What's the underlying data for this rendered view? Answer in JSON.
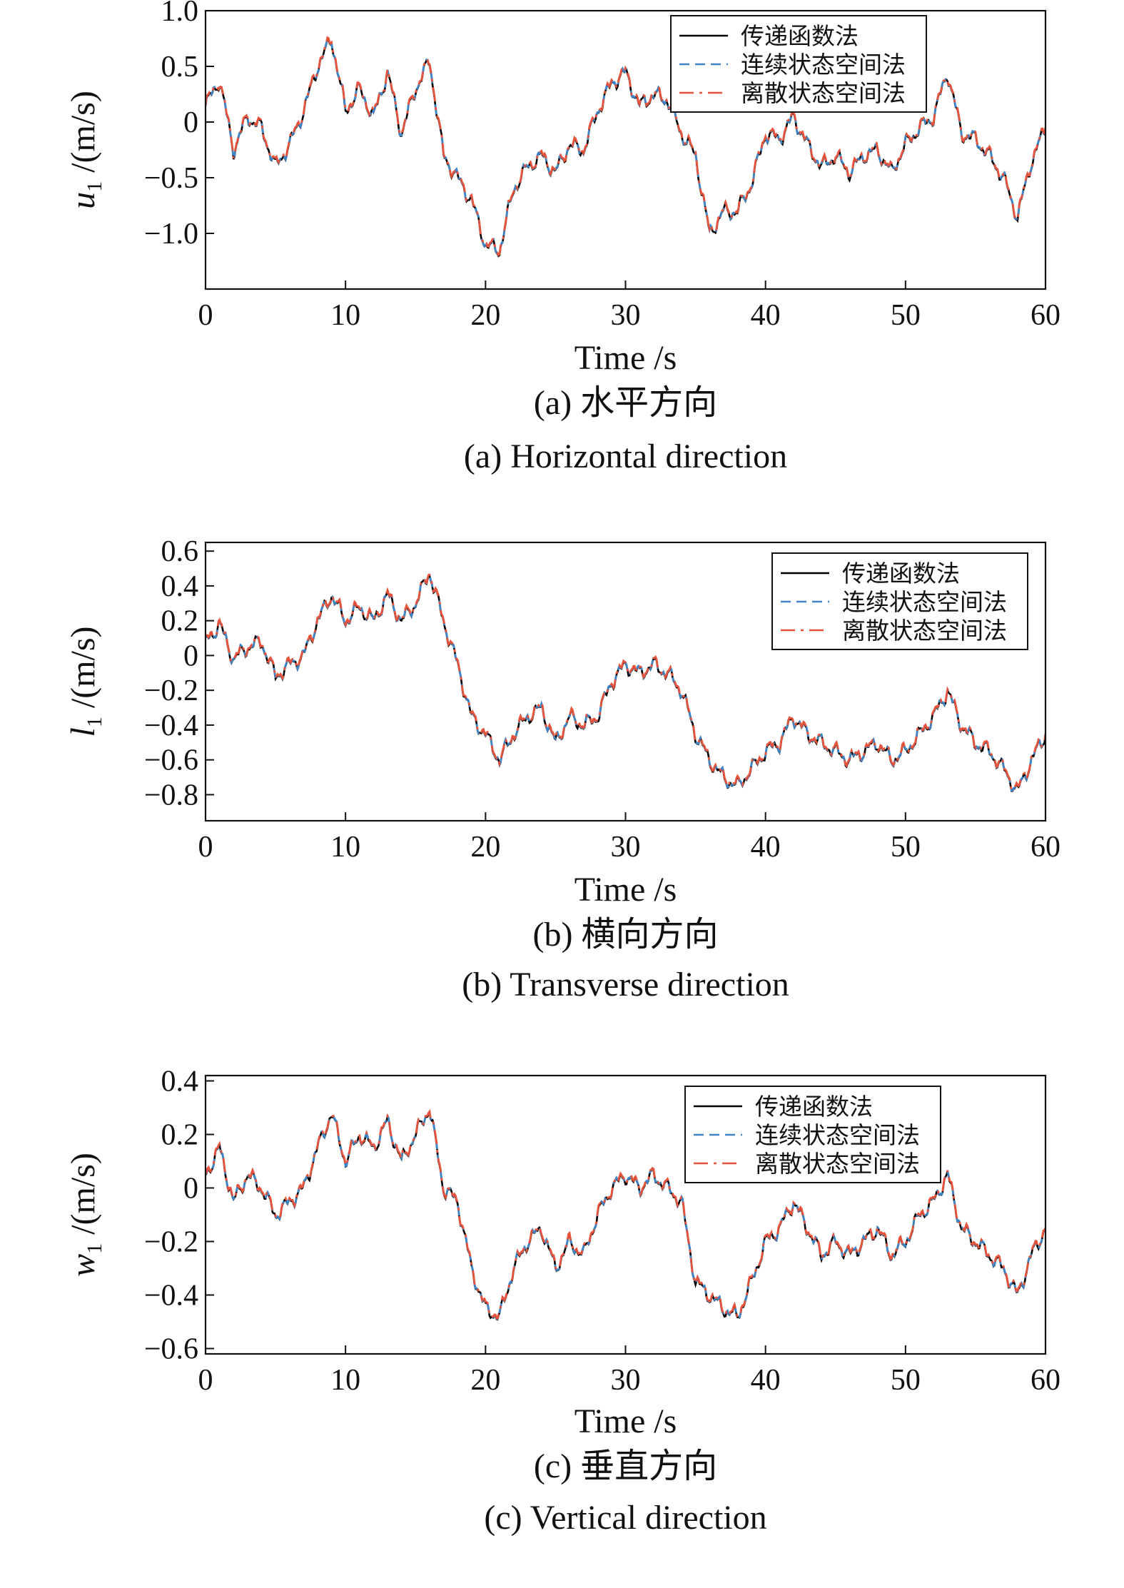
{
  "legend": {
    "entries": [
      "传递函数法",
      "连续状态空间法",
      "离散状态空间法"
    ],
    "colors": [
      "#000000",
      "#3d85c6",
      "#e8513a"
    ],
    "dashes": [
      "",
      "14,8",
      "20,8,4,8"
    ]
  },
  "panels": [
    {
      "ylabel_main": "u",
      "ylabel_sub": "1",
      "ylabel_unit": "/(m/s)",
      "xlabel": "Time /s",
      "caption_cn": "(a) 水平方向",
      "caption_en": "(a) Horizontal direction",
      "ytick_labels": [
        "1.0",
        "0.5",
        "0",
        "−0.5",
        "−1.0"
      ],
      "xtick_labels": [
        "0",
        "10",
        "20",
        "30",
        "40",
        "50",
        "60"
      ]
    },
    {
      "ylabel_main": "l",
      "ylabel_sub": "1",
      "ylabel_unit": "/(m/s)",
      "xlabel": "Time /s",
      "caption_cn": "(b) 横向方向",
      "caption_en": "(b) Transverse direction",
      "ytick_labels": [
        "0.6",
        "0.4",
        "0.2",
        "0",
        "−0.2",
        "−0.4",
        "−0.6",
        "−0.8"
      ],
      "xtick_labels": [
        "0",
        "10",
        "20",
        "30",
        "40",
        "50",
        "60"
      ]
    },
    {
      "ylabel_main": "w",
      "ylabel_sub": "1",
      "ylabel_unit": "/(m/s)",
      "xlabel": "Time /s",
      "caption_cn": "(c) 垂直方向",
      "caption_en": "(c) Vertical direction",
      "ytick_labels": [
        "0.4",
        "0.2",
        "0",
        "−0.2",
        "−0.4",
        "−0.6"
      ],
      "xtick_labels": [
        "0",
        "10",
        "20",
        "30",
        "40",
        "50",
        "60"
      ]
    }
  ],
  "chart_data": [
    {
      "type": "line",
      "xlabel": "Time /s",
      "ylabel": "u1 /(m/s)",
      "xlim": [
        0,
        60
      ],
      "ylim": [
        -1.5,
        1.0
      ],
      "yticks": [
        1.0,
        0.5,
        0,
        -0.5,
        -1.0
      ],
      "xticks": [
        0,
        10,
        20,
        30,
        40,
        50,
        60
      ],
      "legend_position": "top-right",
      "x": [
        0,
        1,
        2,
        3,
        4,
        5,
        6,
        7,
        8,
        9,
        10,
        11,
        12,
        13,
        14,
        15,
        16,
        17,
        18,
        19,
        20,
        21,
        22,
        23,
        24,
        25,
        26,
        27,
        28,
        29,
        30,
        31,
        32,
        33,
        34,
        35,
        36,
        37,
        38,
        39,
        40,
        41,
        42,
        43,
        44,
        45,
        46,
        47,
        48,
        49,
        50,
        51,
        52,
        53,
        54,
        55,
        56,
        57,
        58,
        59,
        60
      ],
      "series": [
        {
          "name": "传递函数法",
          "values": [
            0.15,
            0.38,
            -0.25,
            0.05,
            -0.05,
            -0.4,
            -0.2,
            0.1,
            0.5,
            0.75,
            0.1,
            0.3,
            0.05,
            0.45,
            -0.1,
            0.3,
            0.55,
            -0.3,
            -0.5,
            -0.7,
            -1.1,
            -1.15,
            -0.6,
            -0.4,
            -0.3,
            -0.45,
            -0.2,
            -0.25,
            0.1,
            0.35,
            0.45,
            0.15,
            0.25,
            0.2,
            -0.1,
            -0.3,
            -1.0,
            -0.8,
            -0.8,
            -0.55,
            -0.1,
            -0.15,
            0.05,
            -0.2,
            -0.4,
            -0.3,
            -0.45,
            -0.3,
            -0.25,
            -0.45,
            -0.2,
            -0.05,
            0.05,
            0.45,
            -0.1,
            -0.15,
            -0.3,
            -0.5,
            -0.85,
            -0.35,
            -0.05
          ]
        },
        {
          "name": "连续状态空间法",
          "values": [
            0.15,
            0.38,
            -0.25,
            0.05,
            -0.05,
            -0.4,
            -0.2,
            0.1,
            0.5,
            0.75,
            0.1,
            0.3,
            0.05,
            0.45,
            -0.1,
            0.3,
            0.55,
            -0.3,
            -0.5,
            -0.7,
            -1.1,
            -1.15,
            -0.6,
            -0.4,
            -0.3,
            -0.45,
            -0.2,
            -0.25,
            0.1,
            0.35,
            0.45,
            0.15,
            0.25,
            0.2,
            -0.1,
            -0.3,
            -1.0,
            -0.8,
            -0.8,
            -0.55,
            -0.1,
            -0.15,
            0.05,
            -0.2,
            -0.4,
            -0.3,
            -0.45,
            -0.3,
            -0.25,
            -0.45,
            -0.2,
            -0.05,
            0.05,
            0.45,
            -0.1,
            -0.15,
            -0.3,
            -0.5,
            -0.85,
            -0.35,
            -0.05
          ]
        },
        {
          "name": "离散状态空间法",
          "values": [
            0.15,
            0.38,
            -0.25,
            0.05,
            -0.05,
            -0.4,
            -0.2,
            0.1,
            0.5,
            0.75,
            0.1,
            0.3,
            0.05,
            0.45,
            -0.1,
            0.3,
            0.55,
            -0.3,
            -0.5,
            -0.7,
            -1.1,
            -1.15,
            -0.6,
            -0.4,
            -0.3,
            -0.45,
            -0.2,
            -0.25,
            0.1,
            0.35,
            0.45,
            0.15,
            0.25,
            0.2,
            -0.1,
            -0.3,
            -1.0,
            -0.8,
            -0.8,
            -0.55,
            -0.1,
            -0.15,
            0.05,
            -0.2,
            -0.4,
            -0.3,
            -0.45,
            -0.3,
            -0.25,
            -0.45,
            -0.2,
            -0.05,
            0.05,
            0.45,
            -0.1,
            -0.15,
            -0.3,
            -0.5,
            -0.85,
            -0.35,
            -0.05
          ]
        }
      ]
    },
    {
      "type": "line",
      "xlabel": "Time /s",
      "ylabel": "l1 /(m/s)",
      "xlim": [
        0,
        60
      ],
      "ylim": [
        -0.95,
        0.65
      ],
      "yticks": [
        0.6,
        0.4,
        0.2,
        0,
        -0.2,
        -0.4,
        -0.6,
        -0.8
      ],
      "xticks": [
        0,
        10,
        20,
        30,
        40,
        50,
        60
      ],
      "legend_position": "top-right",
      "x": [
        0,
        1,
        2,
        3,
        4,
        5,
        6,
        7,
        8,
        9,
        10,
        11,
        12,
        13,
        14,
        15,
        16,
        17,
        18,
        19,
        20,
        21,
        22,
        23,
        24,
        25,
        26,
        27,
        28,
        29,
        30,
        31,
        32,
        33,
        34,
        35,
        36,
        37,
        38,
        39,
        40,
        41,
        42,
        43,
        44,
        45,
        46,
        47,
        48,
        49,
        50,
        51,
        52,
        53,
        54,
        55,
        56,
        57,
        58,
        59,
        60
      ],
      "series": [
        {
          "name": "传递函数法",
          "values": [
            0.08,
            0.18,
            -0.02,
            0.05,
            0.08,
            -0.12,
            -0.05,
            0.0,
            0.2,
            0.35,
            0.2,
            0.28,
            0.2,
            0.35,
            0.2,
            0.3,
            0.48,
            0.2,
            -0.05,
            -0.35,
            -0.45,
            -0.6,
            -0.45,
            -0.35,
            -0.3,
            -0.5,
            -0.35,
            -0.4,
            -0.35,
            -0.15,
            -0.05,
            -0.1,
            -0.05,
            -0.1,
            -0.2,
            -0.45,
            -0.6,
            -0.7,
            -0.75,
            -0.65,
            -0.55,
            -0.5,
            -0.35,
            -0.45,
            -0.5,
            -0.55,
            -0.6,
            -0.55,
            -0.5,
            -0.6,
            -0.55,
            -0.45,
            -0.35,
            -0.2,
            -0.4,
            -0.5,
            -0.55,
            -0.65,
            -0.78,
            -0.6,
            -0.45
          ]
        },
        {
          "name": "连续状态空间法",
          "values": [
            0.08,
            0.18,
            -0.02,
            0.05,
            0.08,
            -0.12,
            -0.05,
            0.0,
            0.2,
            0.35,
            0.2,
            0.28,
            0.2,
            0.35,
            0.2,
            0.3,
            0.48,
            0.2,
            -0.05,
            -0.35,
            -0.45,
            -0.6,
            -0.45,
            -0.35,
            -0.3,
            -0.5,
            -0.35,
            -0.4,
            -0.35,
            -0.15,
            -0.05,
            -0.1,
            -0.05,
            -0.1,
            -0.2,
            -0.45,
            -0.6,
            -0.7,
            -0.75,
            -0.65,
            -0.55,
            -0.5,
            -0.35,
            -0.45,
            -0.5,
            -0.55,
            -0.6,
            -0.55,
            -0.5,
            -0.6,
            -0.55,
            -0.45,
            -0.35,
            -0.2,
            -0.4,
            -0.5,
            -0.55,
            -0.65,
            -0.78,
            -0.6,
            -0.45
          ]
        },
        {
          "name": "离散状态空间法",
          "values": [
            0.08,
            0.18,
            -0.02,
            0.05,
            0.08,
            -0.12,
            -0.05,
            0.0,
            0.2,
            0.35,
            0.2,
            0.28,
            0.2,
            0.35,
            0.2,
            0.3,
            0.48,
            0.2,
            -0.05,
            -0.35,
            -0.45,
            -0.6,
            -0.45,
            -0.35,
            -0.3,
            -0.5,
            -0.35,
            -0.4,
            -0.35,
            -0.15,
            -0.05,
            -0.1,
            -0.05,
            -0.1,
            -0.2,
            -0.45,
            -0.6,
            -0.7,
            -0.75,
            -0.65,
            -0.55,
            -0.5,
            -0.35,
            -0.45,
            -0.5,
            -0.55,
            -0.6,
            -0.55,
            -0.5,
            -0.6,
            -0.55,
            -0.45,
            -0.35,
            -0.2,
            -0.4,
            -0.5,
            -0.55,
            -0.65,
            -0.78,
            -0.6,
            -0.45
          ]
        }
      ]
    },
    {
      "type": "line",
      "xlabel": "Time /s",
      "ylabel": "w1 /(m/s)",
      "xlim": [
        0,
        60
      ],
      "ylim": [
        -0.62,
        0.42
      ],
      "yticks": [
        0.4,
        0.2,
        0,
        -0.2,
        -0.4,
        -0.6
      ],
      "xticks": [
        0,
        10,
        20,
        30,
        40,
        50,
        60
      ],
      "legend_position": "top-right",
      "x": [
        0,
        1,
        2,
        3,
        4,
        5,
        6,
        7,
        8,
        9,
        10,
        11,
        12,
        13,
        14,
        15,
        16,
        17,
        18,
        19,
        20,
        21,
        22,
        23,
        24,
        25,
        26,
        27,
        28,
        29,
        30,
        31,
        32,
        33,
        34,
        35,
        36,
        37,
        38,
        39,
        40,
        41,
        42,
        43,
        44,
        45,
        46,
        47,
        48,
        49,
        50,
        51,
        52,
        53,
        54,
        55,
        56,
        57,
        58,
        59,
        60
      ],
      "series": [
        {
          "name": "传递函数法",
          "values": [
            0.05,
            0.15,
            -0.05,
            0.05,
            0.0,
            -0.1,
            -0.05,
            0.0,
            0.15,
            0.28,
            0.1,
            0.2,
            0.15,
            0.25,
            0.1,
            0.2,
            0.3,
            0.0,
            -0.05,
            -0.3,
            -0.45,
            -0.48,
            -0.3,
            -0.2,
            -0.15,
            -0.3,
            -0.2,
            -0.25,
            -0.1,
            0.0,
            0.05,
            0.0,
            0.05,
            0.0,
            -0.05,
            -0.35,
            -0.4,
            -0.45,
            -0.48,
            -0.35,
            -0.2,
            -0.15,
            -0.05,
            -0.15,
            -0.25,
            -0.2,
            -0.25,
            -0.2,
            -0.15,
            -0.25,
            -0.2,
            -0.1,
            -0.05,
            0.05,
            -0.15,
            -0.2,
            -0.25,
            -0.3,
            -0.4,
            -0.25,
            -0.15
          ]
        },
        {
          "name": "连续状态空间法",
          "values": [
            0.05,
            0.15,
            -0.05,
            0.05,
            0.0,
            -0.1,
            -0.05,
            0.0,
            0.15,
            0.28,
            0.1,
            0.2,
            0.15,
            0.25,
            0.1,
            0.2,
            0.3,
            0.0,
            -0.05,
            -0.3,
            -0.45,
            -0.48,
            -0.3,
            -0.2,
            -0.15,
            -0.3,
            -0.2,
            -0.25,
            -0.1,
            0.0,
            0.05,
            0.0,
            0.05,
            0.0,
            -0.05,
            -0.35,
            -0.4,
            -0.45,
            -0.48,
            -0.35,
            -0.2,
            -0.15,
            -0.05,
            -0.15,
            -0.25,
            -0.2,
            -0.25,
            -0.2,
            -0.15,
            -0.25,
            -0.2,
            -0.1,
            -0.05,
            0.05,
            -0.15,
            -0.2,
            -0.25,
            -0.3,
            -0.4,
            -0.25,
            -0.15
          ]
        },
        {
          "name": "离散状态空间法",
          "values": [
            0.05,
            0.15,
            -0.05,
            0.05,
            0.0,
            -0.1,
            -0.05,
            0.0,
            0.15,
            0.28,
            0.1,
            0.2,
            0.15,
            0.25,
            0.1,
            0.2,
            0.3,
            0.0,
            -0.05,
            -0.3,
            -0.45,
            -0.48,
            -0.3,
            -0.2,
            -0.15,
            -0.3,
            -0.2,
            -0.25,
            -0.1,
            0.0,
            0.05,
            0.0,
            0.05,
            0.0,
            -0.05,
            -0.35,
            -0.4,
            -0.45,
            -0.48,
            -0.35,
            -0.2,
            -0.15,
            -0.05,
            -0.15,
            -0.25,
            -0.2,
            -0.25,
            -0.2,
            -0.15,
            -0.25,
            -0.2,
            -0.1,
            -0.05,
            0.05,
            -0.15,
            -0.2,
            -0.25,
            -0.3,
            -0.4,
            -0.25,
            -0.15
          ]
        }
      ]
    }
  ]
}
